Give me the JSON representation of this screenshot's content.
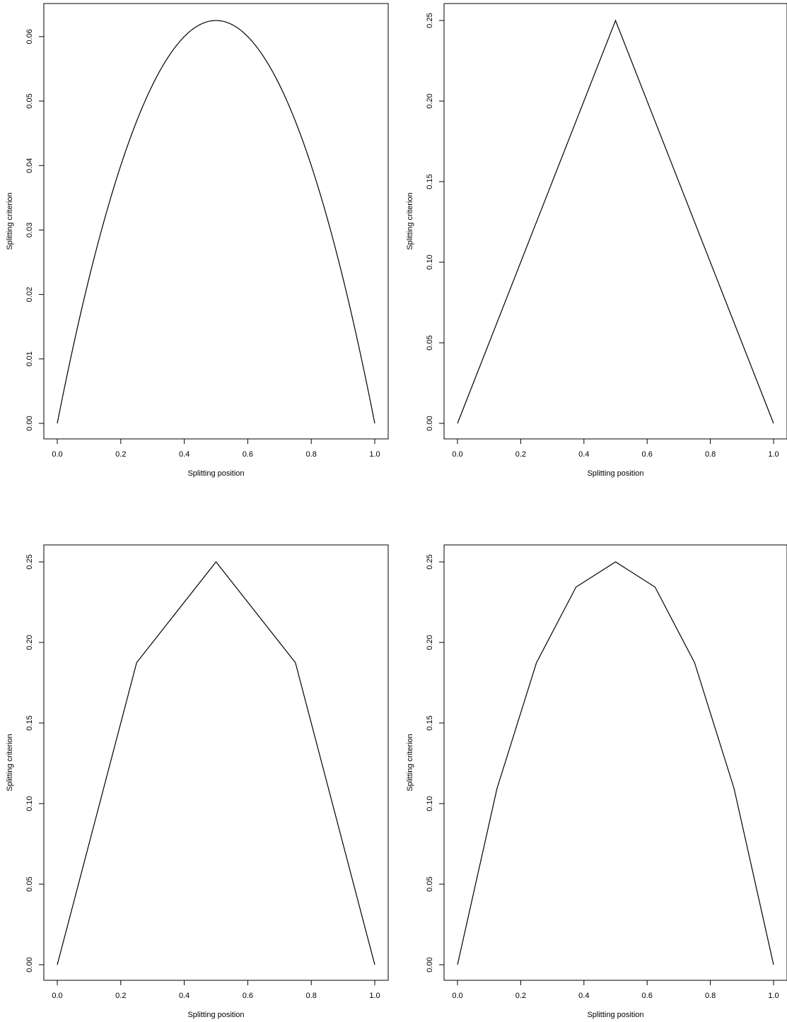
{
  "chart_data": [
    {
      "type": "line",
      "xlabel": "Splitting position",
      "ylabel": "Splitting criterion",
      "xlim": [
        0,
        1
      ],
      "ylim": [
        0,
        0.0625
      ],
      "x_ticks": [
        "0.0",
        "0.2",
        "0.4",
        "0.6",
        "0.8",
        "1.0"
      ],
      "y_ticks": [
        "0.00",
        "0.01",
        "0.02",
        "0.03",
        "0.04",
        "0.05",
        "0.06"
      ],
      "curve": "x^2*(1-x)^2... sampled as p*(1-p)/4",
      "series": [
        {
          "x": [
            0,
            0.05,
            0.1,
            0.15,
            0.2,
            0.25,
            0.3,
            0.35,
            0.4,
            0.45,
            0.5,
            0.55,
            0.6,
            0.65,
            0.7,
            0.75,
            0.8,
            0.85,
            0.9,
            0.95,
            1.0
          ],
          "y": [
            0,
            0.011875,
            0.0225,
            0.031875,
            0.04,
            0.046875,
            0.0525,
            0.056875,
            0.06,
            0.061875,
            0.0625,
            0.061875,
            0.06,
            0.056875,
            0.0525,
            0.046875,
            0.04,
            0.031875,
            0.0225,
            0.011875,
            0
          ]
        }
      ]
    },
    {
      "type": "line",
      "xlabel": "Splitting position",
      "ylabel": "Splitting criterion",
      "xlim": [
        0,
        1
      ],
      "ylim": [
        0,
        0.25
      ],
      "x_ticks": [
        "0.0",
        "0.2",
        "0.4",
        "0.6",
        "0.8",
        "1.0"
      ],
      "y_ticks": [
        "0.00",
        "0.05",
        "0.10",
        "0.15",
        "0.20",
        "0.25"
      ],
      "series": [
        {
          "x": [
            0,
            0.5,
            1.0
          ],
          "y": [
            0,
            0.25,
            0
          ]
        }
      ]
    },
    {
      "type": "line",
      "xlabel": "Splitting position",
      "ylabel": "Splitting criterion",
      "xlim": [
        0,
        1
      ],
      "ylim": [
        0,
        0.25
      ],
      "x_ticks": [
        "0.0",
        "0.2",
        "0.4",
        "0.6",
        "0.8",
        "1.0"
      ],
      "y_ticks": [
        "0.00",
        "0.05",
        "0.10",
        "0.15",
        "0.20",
        "0.25"
      ],
      "series": [
        {
          "x": [
            0,
            0.25,
            0.5,
            0.75,
            1.0
          ],
          "y": [
            0,
            0.1875,
            0.25,
            0.1875,
            0
          ]
        }
      ]
    },
    {
      "type": "line",
      "xlabel": "Splitting position",
      "ylabel": "Splitting criterion",
      "xlim": [
        0,
        1
      ],
      "ylim": [
        0,
        0.25
      ],
      "x_ticks": [
        "0.0",
        "0.2",
        "0.4",
        "0.6",
        "0.8",
        "1.0"
      ],
      "y_ticks": [
        "0.00",
        "0.05",
        "0.10",
        "0.15",
        "0.20",
        "0.25"
      ],
      "series": [
        {
          "x": [
            0,
            0.125,
            0.25,
            0.375,
            0.5,
            0.625,
            0.75,
            0.875,
            1.0
          ],
          "y": [
            0,
            0.109375,
            0.1875,
            0.234375,
            0.25,
            0.234375,
            0.1875,
            0.109375,
            0
          ]
        }
      ]
    }
  ]
}
